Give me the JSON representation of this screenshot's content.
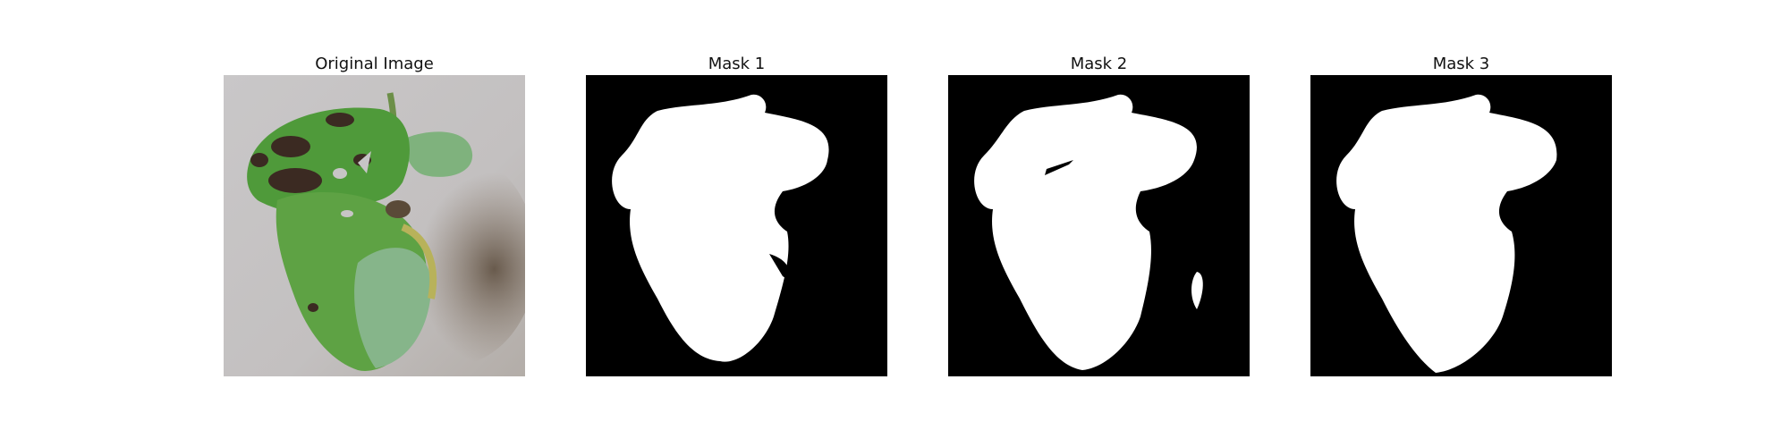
{
  "figure": {
    "panels": [
      {
        "title": "Original Image"
      },
      {
        "title": "Mask 1"
      },
      {
        "title": "Mask 2"
      },
      {
        "title": "Mask 3"
      }
    ]
  },
  "colors": {
    "mask_background": "#000000",
    "mask_foreground": "#ffffff",
    "photo_background": "#c7c5c6",
    "leaf_green": "#4f9a3a",
    "leaf_light": "#7fb27d",
    "lesion_dark": "#3b2a22"
  }
}
